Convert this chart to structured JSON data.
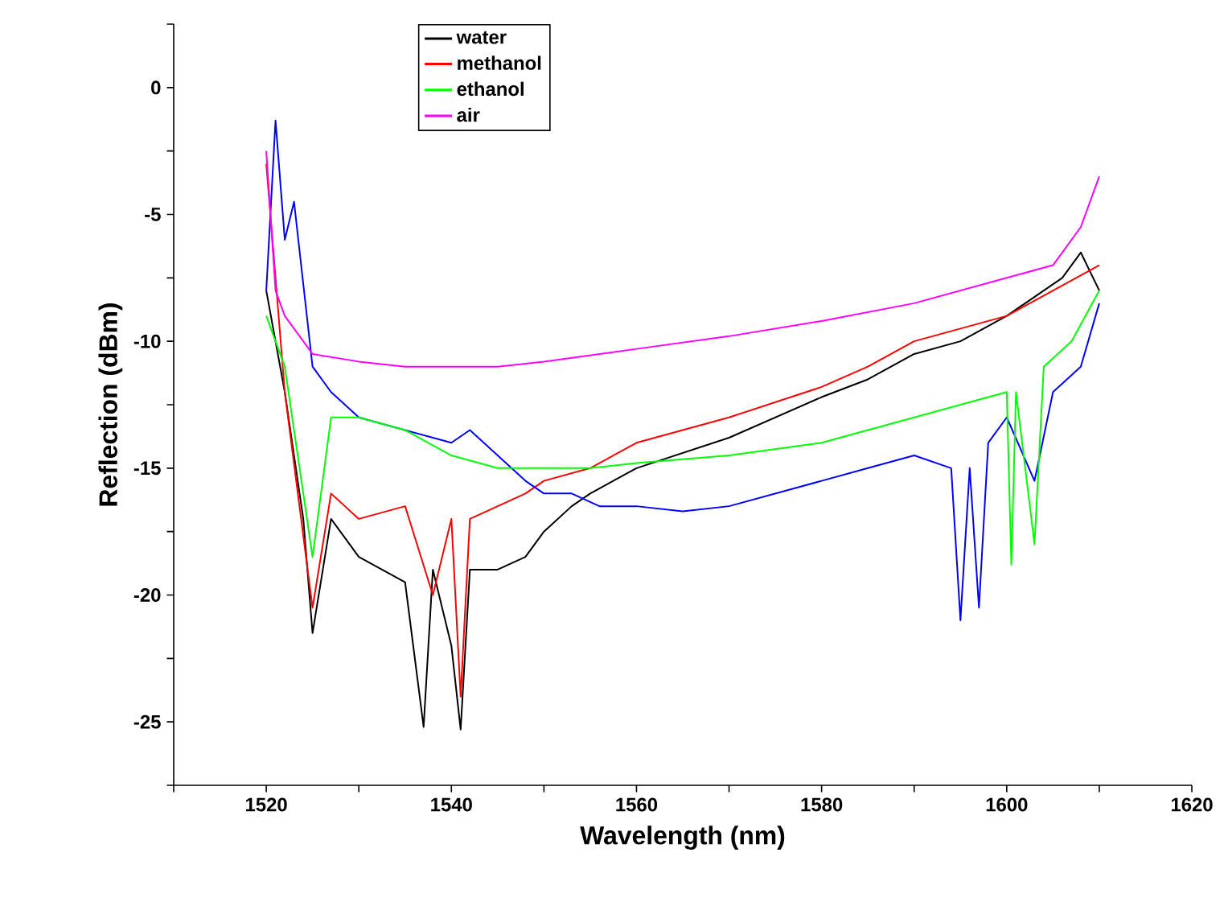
{
  "chart_data": {
    "type": "line",
    "xlabel": "Wavelength  (nm)",
    "ylabel": "Reflection  (dBm)",
    "xlim": [
      1510,
      1620
    ],
    "ylim": [
      -27.5,
      2.5
    ],
    "xticks": [
      {
        "value": 1510,
        "label": null
      },
      1520,
      {
        "value": 1530,
        "label": null
      },
      1540,
      {
        "value": 1550,
        "label": null
      },
      1560,
      {
        "value": 1570,
        "label": null
      },
      1580,
      {
        "value": 1590,
        "label": null
      },
      1600,
      {
        "value": 1610,
        "label": null
      },
      1620
    ],
    "yticks": [
      {
        "value": -27.5,
        "label": null
      },
      -25,
      {
        "value": -22.5,
        "label": null
      },
      -20,
      {
        "value": -17.5,
        "label": null
      },
      -15,
      {
        "value": -12.5,
        "label": null
      },
      -10,
      {
        "value": -7.5,
        "label": null
      },
      -5,
      {
        "value": -2.5,
        "label": null
      },
      0,
      {
        "value": 2.5,
        "label": null
      }
    ],
    "legend": "top",
    "grid": false,
    "series": [
      {
        "name": "water",
        "color": "#000000",
        "x": [
          1520,
          1522,
          1524,
          1525,
          1527,
          1530,
          1535,
          1537,
          1538,
          1540,
          1541,
          1542,
          1545,
          1548,
          1550,
          1553,
          1555,
          1560,
          1570,
          1580,
          1585,
          1590,
          1595,
          1600,
          1604,
          1606,
          1608,
          1610
        ],
        "values": [
          -8,
          -12,
          -17,
          -21.5,
          -17,
          -18.5,
          -19.5,
          -25.2,
          -19,
          -22,
          -25.3,
          -19,
          -19,
          -18.5,
          -17.5,
          -16.5,
          -16,
          -15,
          -13.8,
          -12.2,
          -11.5,
          -10.5,
          -10,
          -9,
          -8,
          -7.5,
          -6.5,
          -8
        ]
      },
      {
        "name": "methanol",
        "color": "#ff0000",
        "x": [
          1520,
          1522,
          1525,
          1527,
          1530,
          1535,
          1538,
          1540,
          1541,
          1542,
          1545,
          1548,
          1550,
          1555,
          1560,
          1570,
          1580,
          1585,
          1590,
          1595,
          1600,
          1605,
          1610
        ],
        "values": [
          -3,
          -12,
          -20.5,
          -16,
          -17,
          -16.5,
          -20,
          -17,
          -24,
          -17,
          -16.5,
          -16,
          -15.5,
          -15,
          -14,
          -13,
          -11.8,
          -11,
          -10,
          -9.5,
          -9,
          -8,
          -7
        ]
      },
      {
        "color": "#0000ff",
        "x": [
          1520,
          1521,
          1522,
          1523,
          1525,
          1527,
          1530,
          1535,
          1540,
          1542,
          1545,
          1548,
          1550,
          1553,
          1556,
          1560,
          1565,
          1570,
          1575,
          1580,
          1585,
          1590,
          1594,
          1595,
          1596,
          1597,
          1598,
          1600,
          1603,
          1605,
          1608,
          1610
        ],
        "values": [
          -8,
          -1.3,
          -6,
          -4.5,
          -11,
          -12,
          -13,
          -13.5,
          -14,
          -13.5,
          -14.5,
          -15.5,
          -16,
          -16,
          -16.5,
          -16.5,
          -16.7,
          -16.5,
          -16,
          -15.5,
          -15,
          -14.5,
          -15,
          -21,
          -15,
          -20.5,
          -14,
          -13,
          -15.5,
          -12,
          -11,
          -8.5
        ]
      },
      {
        "name": "ethanol",
        "color": "#00ff00",
        "x": [
          1520,
          1522,
          1524,
          1525,
          1527,
          1530,
          1535,
          1540,
          1545,
          1550,
          1555,
          1560,
          1570,
          1580,
          1585,
          1590,
          1595,
          1600,
          1600.5,
          1601,
          1603,
          1604,
          1607,
          1610
        ],
        "values": [
          -9,
          -11,
          -16,
          -18.5,
          -13,
          -13,
          -13.5,
          -14.5,
          -15,
          -15,
          -15,
          -14.8,
          -14.5,
          -14,
          -13.5,
          -13,
          -12.5,
          -12,
          -18.8,
          -12,
          -18,
          -11,
          -10,
          -8
        ]
      },
      {
        "name": "air",
        "color": "#ff00ff",
        "x": [
          1520,
          1521,
          1522,
          1524,
          1525,
          1530,
          1535,
          1540,
          1545,
          1550,
          1560,
          1570,
          1580,
          1590,
          1600,
          1605,
          1608,
          1610
        ],
        "values": [
          -2.5,
          -8,
          -9,
          -10,
          -10.5,
          -10.8,
          -11,
          -11,
          -11,
          -10.8,
          -10.3,
          -9.8,
          -9.2,
          -8.5,
          -7.5,
          -7,
          -5.5,
          -3.5
        ]
      }
    ]
  }
}
